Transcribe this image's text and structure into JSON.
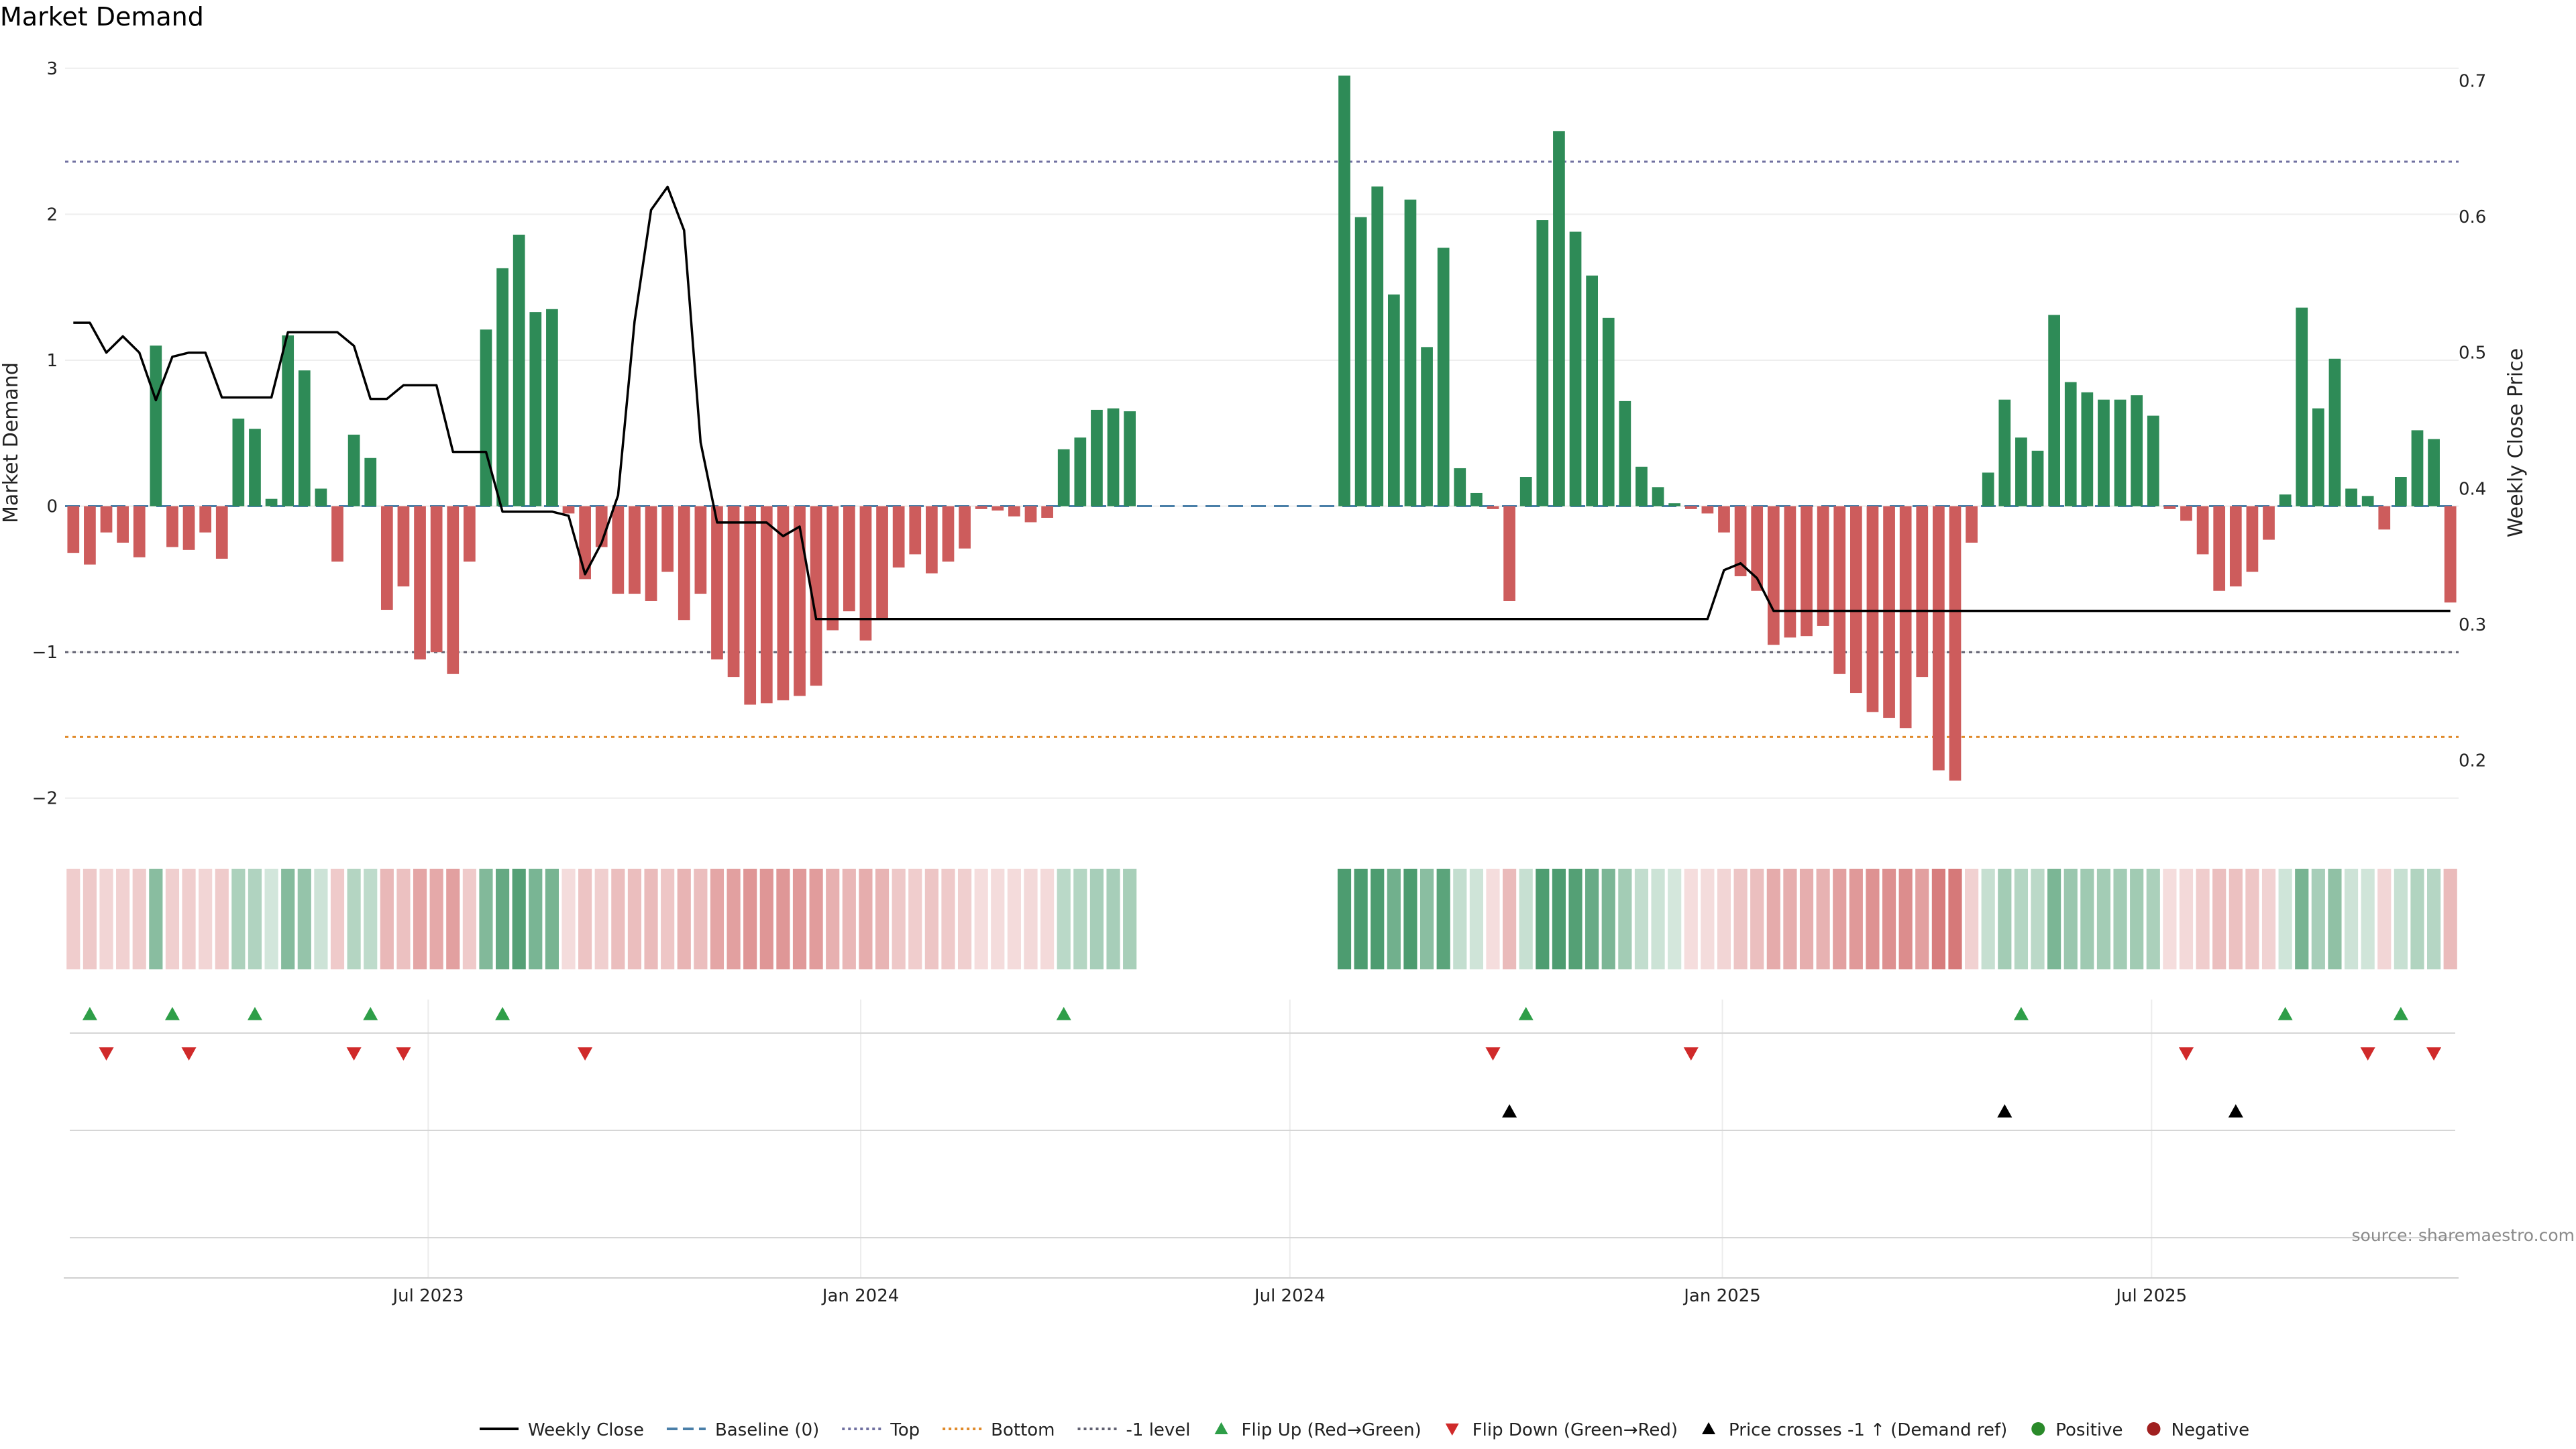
{
  "chart_data": {
    "type": "bar",
    "title": "Market Demand",
    "ylabel": "Market Demand",
    "y2label": "Weekly Close Price",
    "source": "source: sharemaestro.com",
    "ylim": [
      -2.3,
      3.1
    ],
    "y2lim": [
      0.14,
      0.72
    ],
    "yticks": [
      {
        "value": -2,
        "label": "−2"
      },
      {
        "value": -1,
        "label": "−1"
      },
      {
        "value": 0,
        "label": "0"
      },
      {
        "value": 1,
        "label": "1"
      },
      {
        "value": 2,
        "label": "2"
      },
      {
        "value": 3,
        "label": "3"
      }
    ],
    "y2ticks": [
      {
        "value": 0.2,
        "label": "0.2"
      },
      {
        "value": 0.3,
        "label": "0.3"
      },
      {
        "value": 0.4,
        "label": "0.4"
      },
      {
        "value": 0.5,
        "label": "0.5"
      },
      {
        "value": 0.6,
        "label": "0.6"
      },
      {
        "value": 0.7,
        "label": "0.7"
      }
    ],
    "xticks": [
      {
        "week": 21.5,
        "label": "Jul 2023"
      },
      {
        "week": 47.7,
        "label": "Jan 2024"
      },
      {
        "week": 73.7,
        "label": "Jul 2024"
      },
      {
        "week": 99.9,
        "label": "Jan 2025"
      },
      {
        "week": 125.9,
        "label": "Jul 2025"
      }
    ],
    "reference_lines": {
      "top": 2.36,
      "bottom": -1.58,
      "minus_one": -1.0,
      "baseline": 0
    },
    "start_week": "2023-02-06",
    "interval": "weekly",
    "demand": [
      -0.32,
      -0.4,
      -0.18,
      -0.25,
      -0.35,
      1.1,
      -0.28,
      -0.3,
      -0.18,
      -0.36,
      0.6,
      0.53,
      0.05,
      1.17,
      0.93,
      0.12,
      -0.38,
      0.49,
      0.33,
      -0.71,
      -0.55,
      -1.05,
      -1.0,
      -1.15,
      -0.38,
      1.21,
      1.63,
      1.86,
      1.33,
      1.35,
      -0.05,
      -0.5,
      -0.28,
      -0.6,
      -0.6,
      -0.65,
      -0.45,
      -0.78,
      -0.6,
      -1.05,
      -1.17,
      -1.36,
      -1.35,
      -1.33,
      -1.3,
      -1.23,
      -0.85,
      -0.72,
      -0.92,
      -0.78,
      -0.42,
      -0.33,
      -0.46,
      -0.38,
      -0.29,
      -0.02,
      -0.03,
      -0.07,
      -0.11,
      -0.08,
      0.39,
      0.47,
      0.66,
      0.67,
      0.65,
      null,
      null,
      null,
      null,
      null,
      null,
      null,
      null,
      null,
      null,
      null,
      null,
      2.95,
      1.98,
      2.19,
      1.45,
      2.1,
      1.09,
      1.77,
      0.26,
      0.09,
      -0.02,
      -0.65,
      0.2,
      1.96,
      2.57,
      1.88,
      1.58,
      1.29,
      0.72,
      0.27,
      0.13,
      0.02,
      -0.02,
      -0.05,
      -0.18,
      -0.48,
      -0.58,
      -0.95,
      -0.9,
      -0.89,
      -0.82,
      -1.15,
      -1.28,
      -1.41,
      -1.45,
      -1.52,
      -1.17,
      -1.81,
      -1.88,
      -0.25,
      0.23,
      0.73,
      0.47,
      0.38,
      1.31,
      0.85,
      0.78,
      0.73,
      0.73,
      0.76,
      0.62,
      -0.02,
      -0.1,
      -0.33,
      -0.58,
      -0.55,
      -0.45,
      -0.23,
      0.08,
      1.36,
      0.67,
      1.01,
      0.12,
      0.07,
      -0.16,
      0.2,
      0.52,
      0.46,
      -0.66
    ],
    "price": [
      0.522,
      0.522,
      0.5,
      0.512,
      0.5,
      0.465,
      0.497,
      0.5,
      0.5,
      0.467,
      0.467,
      0.467,
      0.467,
      0.515,
      0.515,
      0.515,
      0.515,
      0.505,
      0.466,
      0.466,
      0.476,
      0.476,
      0.476,
      0.427,
      0.427,
      0.427,
      0.383,
      0.383,
      0.383,
      0.383,
      0.38,
      0.337,
      0.36,
      0.395,
      0.523,
      0.605,
      0.622,
      0.59,
      0.434,
      0.375,
      0.375,
      0.375,
      0.375,
      0.365,
      0.372,
      0.304,
      0.304,
      0.304,
      0.304,
      0.304,
      0.304,
      0.304,
      0.304,
      0.304,
      0.304,
      0.304,
      0.304,
      0.304,
      0.304,
      0.304,
      0.304,
      0.304,
      0.304,
      0.304,
      0.304,
      0.304,
      0.304,
      0.304,
      0.304,
      0.304,
      0.304,
      0.304,
      0.304,
      0.304,
      0.304,
      0.304,
      0.304,
      0.304,
      0.304,
      0.304,
      0.304,
      0.304,
      0.304,
      0.304,
      0.304,
      0.304,
      0.304,
      0.304,
      0.304,
      0.304,
      0.304,
      0.304,
      0.304,
      0.304,
      0.304,
      0.304,
      0.304,
      0.304,
      0.304,
      0.304,
      0.34,
      0.345,
      0.334,
      0.31,
      0.31,
      0.31,
      0.31,
      0.31,
      0.31,
      0.31,
      0.31,
      0.31,
      0.31,
      0.31,
      0.31,
      0.31,
      0.31,
      0.31,
      0.31,
      0.31,
      0.31,
      0.31,
      0.31,
      0.31,
      0.31,
      0.31,
      0.31,
      0.31,
      0.31,
      0.31,
      0.31,
      0.31,
      0.31,
      0.31,
      0.31,
      0.31,
      0.31,
      0.31,
      0.31,
      0.31,
      0.31,
      0.31,
      0.31,
      0.31,
      0.31
    ],
    "flip_up_weeks": [
      1,
      6,
      11,
      18,
      26,
      60,
      88,
      118,
      134,
      141
    ],
    "flip_down_weeks": [
      2,
      7,
      17,
      20,
      31,
      86,
      98,
      128,
      139,
      143
    ],
    "price_cross_weeks": [
      87,
      117,
      131
    ],
    "legend": [
      {
        "label": "Weekly Close",
        "kind": "solid-line",
        "color": "#000000"
      },
      {
        "label": "Baseline (0)",
        "kind": "dashed-line",
        "color": "#4a7fa8"
      },
      {
        "label": "Top",
        "kind": "dotted-line",
        "color": "#7070a0"
      },
      {
        "label": "Bottom",
        "kind": "dotted-line",
        "color": "#e08a2a"
      },
      {
        "label": "-1 level",
        "kind": "dotted-line",
        "color": "#606070"
      },
      {
        "label": "Flip Up (Red→Green)",
        "kind": "triangle-up",
        "color": "#2e9e48"
      },
      {
        "label": "Flip Down (Green→Red)",
        "kind": "triangle-down",
        "color": "#d02a2a"
      },
      {
        "label": "Price crosses -1 ↑ (Demand ref)",
        "kind": "triangle-up",
        "color": "#000000"
      },
      {
        "label": "Positive",
        "kind": "dot",
        "color": "#2a8a2a"
      },
      {
        "label": "Negative",
        "kind": "dot",
        "color": "#a02020"
      }
    ],
    "colors": {
      "positive": "#2e8b57",
      "negative": "#cd5c5c",
      "price": "#000000",
      "baseline": "#4a7fa8",
      "top": "#7070a0",
      "bottom": "#e08a2a",
      "minus_one": "#606070",
      "flip_up": "#2e9e48",
      "flip_down": "#d02a2a",
      "cross": "#000000"
    }
  }
}
